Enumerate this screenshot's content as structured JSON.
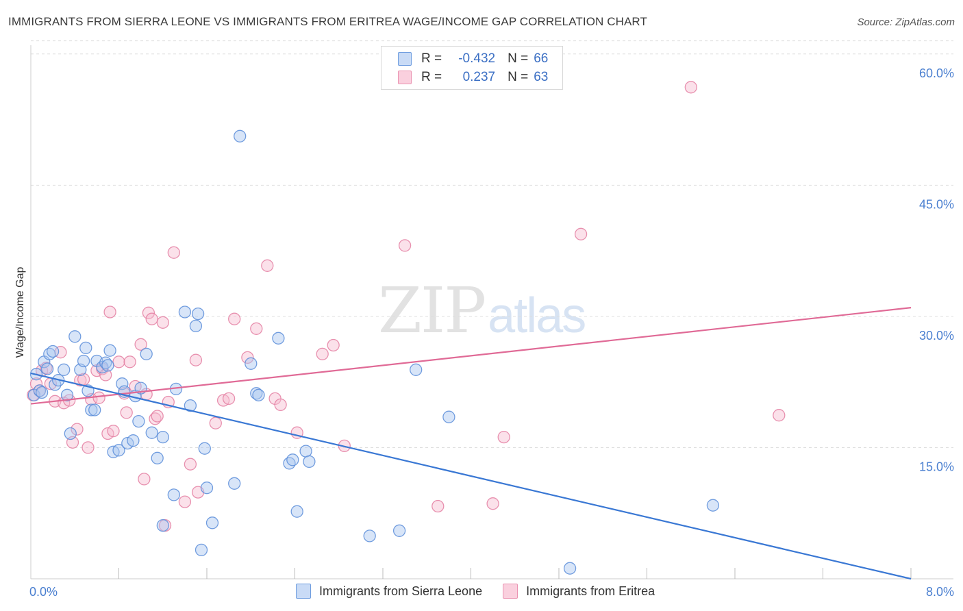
{
  "title": "IMMIGRANTS FROM SIERRA LEONE VS IMMIGRANTS FROM ERITREA WAGE/INCOME GAP CORRELATION CHART",
  "source": "Source: ZipAtlas.com",
  "watermark": {
    "zip": "ZIP",
    "atlas": "atlas"
  },
  "legend": {
    "r_label": "R =",
    "n_label": "N =",
    "series": [
      {
        "name": "Immigrants from Sierra Leone",
        "r": "-0.432",
        "n": "66",
        "fill": "#a9c6f0",
        "stroke": "#5b8dd9"
      },
      {
        "name": "Immigrants from Eritrea",
        "r": "0.237",
        "n": "63",
        "fill": "#f6bcd0",
        "stroke": "#e47fa2"
      }
    ]
  },
  "colors": {
    "blue_line": "#3a78d4",
    "pink_line": "#e06a96",
    "tick": "#4a7fd0",
    "grid": "#dddddd"
  },
  "chart_data": {
    "type": "scatter",
    "title": "IMMIGRANTS FROM SIERRA LEONE VS IMMIGRANTS FROM ERITREA WAGE/INCOME GAP CORRELATION CHART",
    "xlabel": "",
    "ylabel": "Wage/Income Gap",
    "xlim": [
      0,
      8
    ],
    "ylim": [
      0,
      61
    ],
    "x_tick_labels": [
      "0.0%",
      "8.0%"
    ],
    "y_ticks": [
      15,
      30,
      45,
      60
    ],
    "y_tick_labels": [
      "15.0%",
      "30.0%",
      "45.0%",
      "60.0%"
    ],
    "series": [
      {
        "name": "Immigrants from Sierra Leone",
        "trend": {
          "x": [
            0,
            8
          ],
          "y": [
            23.5,
            0.0
          ]
        },
        "points": [
          [
            0.03,
            21.0
          ],
          [
            0.05,
            23.4
          ],
          [
            0.08,
            21.5
          ],
          [
            0.1,
            21.3
          ],
          [
            0.12,
            24.8
          ],
          [
            0.15,
            24.0
          ],
          [
            0.17,
            25.7
          ],
          [
            0.2,
            26.0
          ],
          [
            0.22,
            22.2
          ],
          [
            0.25,
            22.7
          ],
          [
            0.3,
            23.9
          ],
          [
            0.33,
            21.0
          ],
          [
            0.36,
            16.6
          ],
          [
            0.4,
            27.7
          ],
          [
            0.45,
            23.9
          ],
          [
            0.48,
            24.9
          ],
          [
            0.5,
            26.4
          ],
          [
            0.52,
            21.5
          ],
          [
            0.55,
            19.3
          ],
          [
            0.58,
            19.3
          ],
          [
            0.6,
            24.9
          ],
          [
            0.65,
            24.2
          ],
          [
            0.68,
            24.7
          ],
          [
            0.7,
            24.4
          ],
          [
            0.72,
            26.1
          ],
          [
            0.75,
            14.5
          ],
          [
            0.8,
            14.7
          ],
          [
            0.83,
            22.3
          ],
          [
            0.85,
            21.4
          ],
          [
            0.88,
            15.5
          ],
          [
            0.93,
            15.8
          ],
          [
            0.95,
            20.9
          ],
          [
            0.98,
            18.0
          ],
          [
            1.0,
            21.8
          ],
          [
            1.05,
            25.7
          ],
          [
            1.1,
            16.7
          ],
          [
            1.15,
            13.8
          ],
          [
            1.2,
            16.2
          ],
          [
            1.2,
            6.1
          ],
          [
            1.3,
            9.6
          ],
          [
            1.32,
            21.7
          ],
          [
            1.4,
            30.5
          ],
          [
            1.45,
            19.8
          ],
          [
            1.5,
            28.9
          ],
          [
            1.52,
            30.3
          ],
          [
            1.55,
            3.3
          ],
          [
            1.58,
            14.9
          ],
          [
            1.6,
            10.4
          ],
          [
            1.65,
            6.4
          ],
          [
            1.85,
            10.9
          ],
          [
            1.9,
            50.6
          ],
          [
            2.0,
            24.6
          ],
          [
            2.05,
            21.2
          ],
          [
            2.07,
            21.0
          ],
          [
            2.25,
            27.5
          ],
          [
            2.35,
            13.2
          ],
          [
            2.38,
            13.6
          ],
          [
            2.42,
            7.7
          ],
          [
            2.5,
            14.6
          ],
          [
            2.53,
            13.4
          ],
          [
            3.08,
            4.9
          ],
          [
            3.35,
            5.5
          ],
          [
            3.5,
            23.9
          ],
          [
            3.8,
            18.5
          ],
          [
            4.9,
            1.2
          ],
          [
            6.2,
            8.4
          ]
        ]
      },
      {
        "name": "Immigrants from Eritrea",
        "trend": {
          "x": [
            0,
            8
          ],
          "y": [
            20.0,
            31.0
          ]
        },
        "points": [
          [
            0.02,
            21.0
          ],
          [
            0.05,
            22.3
          ],
          [
            0.08,
            21.5
          ],
          [
            0.1,
            23.8
          ],
          [
            0.14,
            24.1
          ],
          [
            0.18,
            22.3
          ],
          [
            0.22,
            20.3
          ],
          [
            0.27,
            25.9
          ],
          [
            0.3,
            20.1
          ],
          [
            0.35,
            20.4
          ],
          [
            0.38,
            15.6
          ],
          [
            0.42,
            17.1
          ],
          [
            0.45,
            22.7
          ],
          [
            0.48,
            22.8
          ],
          [
            0.52,
            15.0
          ],
          [
            0.55,
            20.5
          ],
          [
            0.6,
            23.8
          ],
          [
            0.62,
            20.7
          ],
          [
            0.65,
            24.0
          ],
          [
            0.68,
            23.3
          ],
          [
            0.7,
            16.6
          ],
          [
            0.72,
            30.5
          ],
          [
            0.75,
            16.9
          ],
          [
            0.8,
            24.8
          ],
          [
            0.85,
            21.2
          ],
          [
            0.87,
            19.0
          ],
          [
            0.9,
            24.8
          ],
          [
            0.95,
            22.0
          ],
          [
            1.0,
            26.8
          ],
          [
            1.03,
            11.4
          ],
          [
            1.05,
            21.1
          ],
          [
            1.07,
            30.4
          ],
          [
            1.1,
            29.7
          ],
          [
            1.13,
            18.3
          ],
          [
            1.15,
            18.6
          ],
          [
            1.2,
            29.3
          ],
          [
            1.22,
            6.1
          ],
          [
            1.25,
            20.2
          ],
          [
            1.3,
            37.3
          ],
          [
            1.4,
            8.8
          ],
          [
            1.45,
            13.1
          ],
          [
            1.5,
            25.0
          ],
          [
            1.52,
            9.9
          ],
          [
            1.68,
            17.8
          ],
          [
            1.75,
            20.4
          ],
          [
            1.8,
            20.6
          ],
          [
            1.85,
            29.7
          ],
          [
            1.97,
            25.3
          ],
          [
            2.05,
            28.6
          ],
          [
            2.15,
            35.8
          ],
          [
            2.22,
            20.6
          ],
          [
            2.27,
            19.9
          ],
          [
            2.42,
            16.7
          ],
          [
            2.65,
            25.7
          ],
          [
            2.75,
            26.7
          ],
          [
            2.85,
            15.2
          ],
          [
            3.4,
            38.1
          ],
          [
            3.7,
            8.3
          ],
          [
            4.2,
            8.6
          ],
          [
            4.3,
            16.2
          ],
          [
            5.0,
            39.4
          ],
          [
            6.0,
            56.2
          ],
          [
            6.8,
            18.7
          ]
        ]
      }
    ]
  }
}
